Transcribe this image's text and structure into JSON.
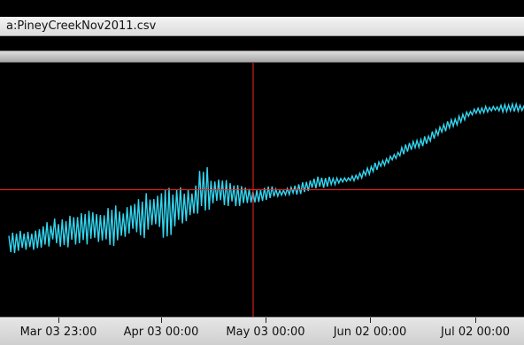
{
  "window": {
    "title": "a:PineyCreekNov2011.csv"
  },
  "theme": {
    "plot_bg": "#000000",
    "series_color": "#33d6f0",
    "crosshair_color": "#ff2020"
  },
  "chart_data": {
    "type": "line",
    "x_start": "Mar 03 23:00",
    "x_end": "Jul 17 00:00",
    "x_ticks": [
      "Mar 03 23:00",
      "Apr 03 00:00",
      "May 03 00:00",
      "Jun 02 00:00",
      "Jul 02 00:00"
    ],
    "y_range": [
      0,
      1
    ],
    "crosshair": {
      "x": "May 07 00:00",
      "y": 0.5
    },
    "series": [
      {
        "envelope": [
          [
            0,
            0.33,
            0.24
          ],
          [
            3,
            0.34,
            0.25
          ],
          [
            6,
            0.34,
            0.26
          ],
          [
            9,
            0.37,
            0.27
          ],
          [
            12,
            0.39,
            0.28
          ],
          [
            15,
            0.4,
            0.26
          ],
          [
            18,
            0.41,
            0.28
          ],
          [
            21,
            0.42,
            0.27
          ],
          [
            24,
            0.42,
            0.29
          ],
          [
            27,
            0.44,
            0.27
          ],
          [
            30,
            0.44,
            0.3
          ],
          [
            33,
            0.46,
            0.32
          ],
          [
            36,
            0.5,
            0.3
          ],
          [
            39,
            0.51,
            0.33
          ],
          [
            42,
            0.52,
            0.29
          ],
          [
            45,
            0.51,
            0.35
          ],
          [
            48,
            0.5,
            0.37
          ],
          [
            51,
            0.62,
            0.4
          ],
          [
            53,
            0.56,
            0.42
          ],
          [
            56,
            0.54,
            0.44
          ],
          [
            59,
            0.54,
            0.43
          ],
          [
            62,
            0.51,
            0.44
          ],
          [
            65,
            0.5,
            0.45
          ],
          [
            68,
            0.52,
            0.46
          ],
          [
            71,
            0.5,
            0.47
          ],
          [
            74,
            0.51,
            0.48
          ],
          [
            77,
            0.53,
            0.48
          ],
          [
            80,
            0.55,
            0.5
          ],
          [
            83,
            0.56,
            0.5
          ],
          [
            86,
            0.55,
            0.52
          ],
          [
            89,
            0.55,
            0.53
          ],
          [
            92,
            0.57,
            0.54
          ],
          [
            95,
            0.6,
            0.56
          ],
          [
            98,
            0.62,
            0.59
          ],
          [
            101,
            0.64,
            0.62
          ],
          [
            104,
            0.68,
            0.64
          ],
          [
            107,
            0.7,
            0.66
          ],
          [
            110,
            0.72,
            0.68
          ],
          [
            113,
            0.75,
            0.72
          ],
          [
            116,
            0.78,
            0.74
          ],
          [
            119,
            0.8,
            0.77
          ],
          [
            122,
            0.82,
            0.8
          ],
          [
            125,
            0.83,
            0.8
          ],
          [
            128,
            0.83,
            0.81
          ],
          [
            131,
            0.84,
            0.8
          ],
          [
            134,
            0.84,
            0.81
          ],
          [
            136,
            0.83,
            0.8
          ]
        ]
      }
    ]
  }
}
